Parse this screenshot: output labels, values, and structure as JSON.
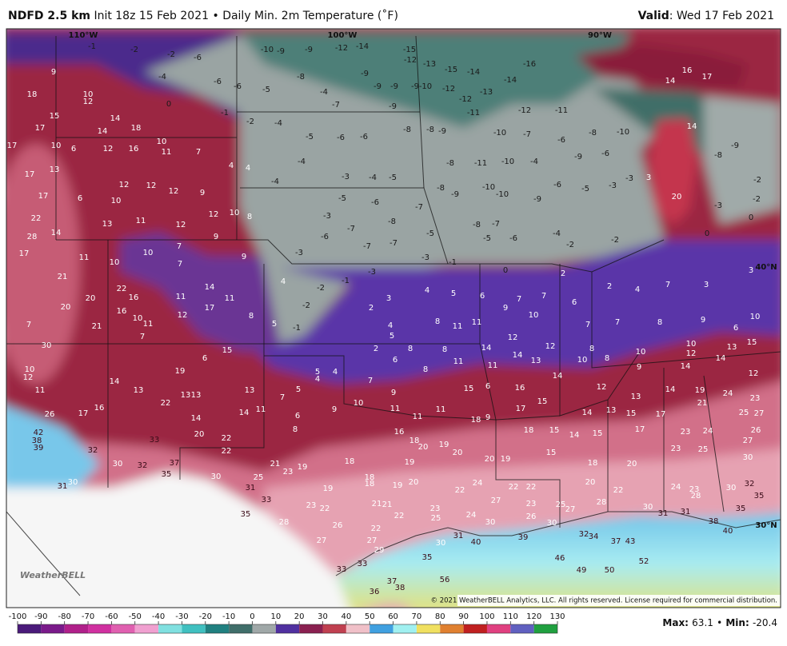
{
  "header": {
    "model": "NDFD 2.5 km",
    "init": "Init 18z 15 Feb 2021",
    "separator": "•",
    "product": "Daily Min. 2m Temperature (˚F)",
    "valid_label": "Valid",
    "valid_date": ": Wed 17 Feb 2021"
  },
  "map": {
    "lon_labels": [
      "110°W",
      "100°W",
      "90°W"
    ],
    "lat_labels": [
      "40°N",
      "30°N"
    ],
    "values": [
      -2,
      -1,
      -2,
      -6,
      -4,
      -6,
      -6,
      0,
      -1,
      -2,
      -4,
      -10,
      -9,
      -9,
      -12,
      -14,
      -15,
      -12,
      -13,
      -15,
      -14,
      -14,
      -16,
      -5,
      -8,
      -4,
      -7,
      -9,
      -9,
      -9,
      -9,
      -9,
      -10,
      -12,
      -12,
      -13,
      -11,
      -12,
      -11,
      -5,
      -6,
      -6,
      -8,
      -8,
      -9,
      -10,
      -7,
      -6,
      -8,
      -10,
      -4,
      -3,
      -4,
      -5,
      -4,
      -8,
      -11,
      -10,
      -4,
      -9,
      -6,
      -5,
      -6,
      -7,
      -8,
      -9,
      -10,
      -10,
      -9,
      -6,
      -5,
      -3,
      -3,
      -3,
      -8,
      -7,
      -5,
      -8,
      -7,
      -6,
      -7,
      -7,
      -5,
      -6,
      -4,
      -2,
      -2,
      -3,
      -3,
      -1,
      -3,
      -2,
      -2,
      -1,
      -1,
      16,
      17,
      14,
      14,
      -9,
      -8,
      -2,
      20,
      3,
      -3,
      0,
      0,
      -2,
      0,
      2,
      2,
      4,
      7,
      3,
      3,
      4,
      5,
      3,
      2,
      6,
      9,
      7,
      7,
      6,
      4,
      5,
      8,
      11,
      11,
      10,
      7,
      7,
      8,
      9,
      10,
      6,
      12,
      12,
      14,
      14,
      13,
      8,
      8,
      10,
      10,
      10,
      12,
      13,
      15,
      2,
      6,
      8,
      8,
      8,
      11,
      11,
      14,
      12,
      9,
      14,
      14,
      12,
      15,
      6,
      16,
      15,
      17,
      14,
      13,
      15,
      13,
      17,
      14,
      19,
      24,
      23,
      21,
      25,
      27,
      16,
      18,
      20,
      19,
      20,
      18,
      9,
      18,
      15,
      14,
      15,
      17,
      23,
      24,
      26,
      27,
      23,
      25,
      30,
      15,
      20,
      19,
      19,
      18,
      18,
      18,
      20,
      20,
      22,
      24,
      23,
      30,
      32,
      35,
      35,
      28,
      30,
      31,
      31,
      38,
      40,
      19,
      20,
      22,
      24,
      27,
      22,
      22,
      23,
      25,
      27,
      28,
      21,
      21,
      23,
      25,
      22,
      24,
      30,
      26,
      30,
      39,
      32,
      34,
      37,
      43,
      52,
      46,
      49,
      50,
      40,
      31,
      30,
      35,
      56,
      37,
      38,
      36,
      33,
      33,
      29,
      27,
      22,
      9,
      18,
      10,
      12,
      15,
      17,
      14,
      18,
      14,
      17,
      10,
      6,
      12,
      16,
      11,
      10,
      7,
      4,
      4,
      17,
      13,
      12,
      12,
      12,
      9,
      17,
      6,
      10,
      22,
      28,
      14,
      13,
      11,
      12,
      12,
      10,
      8,
      9,
      17,
      11,
      10,
      10,
      7,
      7,
      9,
      21,
      22,
      20,
      20,
      16,
      16,
      11,
      14,
      11,
      17,
      12,
      21,
      10,
      11,
      7,
      7,
      30,
      8,
      15,
      6,
      19,
      10,
      12,
      14,
      13,
      22,
      13,
      13,
      11,
      16,
      17,
      26,
      14,
      14,
      11,
      13,
      7,
      5,
      5,
      4,
      4,
      6,
      8,
      9,
      10,
      9,
      11,
      11,
      11,
      7,
      42,
      38,
      39,
      32,
      33,
      20,
      22,
      22,
      30,
      32,
      37,
      35,
      31,
      30,
      30,
      25,
      31,
      21,
      23,
      19,
      33,
      35,
      28,
      23,
      22,
      19,
      26,
      27,
      18,
      4,
      5
    ]
  },
  "colorbar": {
    "ticks": [
      -100,
      -90,
      -80,
      -70,
      -60,
      -50,
      -40,
      -30,
      -20,
      -10,
      0,
      10,
      20,
      30,
      40,
      50,
      60,
      70,
      80,
      90,
      100,
      110,
      120,
      130
    ]
  },
  "footer": {
    "copyright": "© 2021 WeatherBELL Analytics, LLC. All rights reserved. License required for commercial distribution.",
    "logo": "WeatherBELL",
    "max_label": "Max:",
    "max": 63.1,
    "separator": "•",
    "min_label": "Min:",
    "min": -20.4
  }
}
